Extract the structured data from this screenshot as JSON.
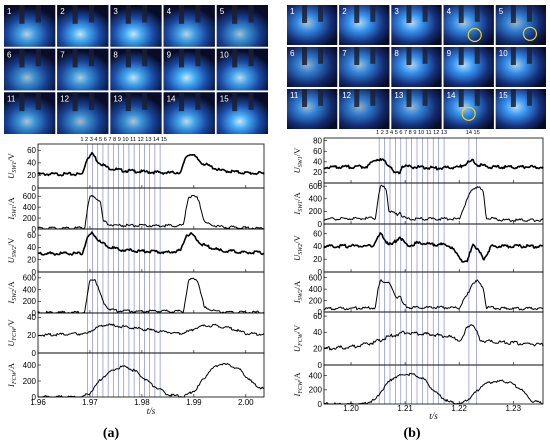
{
  "figure": {
    "panel_labels": [
      "(a)",
      "(b)"
    ],
    "frame_numbers": [
      "1",
      "2",
      "3",
      "4",
      "5",
      "6",
      "7",
      "8",
      "9",
      "10",
      "11",
      "12",
      "13",
      "14",
      "15"
    ]
  },
  "colors": {
    "trace": "#000000",
    "marker_line": "#6f78c8",
    "frame_bg": "#0b1030",
    "frame_glow": "#3aa0ff",
    "highlight_circle": "#f2d21b"
  },
  "chart_data": [
    {
      "id": "a",
      "type": "line",
      "xlabel": "t/s",
      "xlim": [
        1.96,
        2.0035
      ],
      "xticks": [
        1.96,
        1.97,
        1.98,
        1.99,
        2.0
      ],
      "xtick_labels": [
        "1.96",
        "1.97",
        "1.98",
        "1.99",
        "2.00"
      ],
      "marker_labels": [
        "1",
        "2",
        "3",
        "4",
        "5",
        "6",
        "7",
        "8",
        "9",
        "10",
        "11",
        "12",
        "13",
        "14",
        "15"
      ],
      "marker_label_text": [
        "1 2 3 4 5 6 7 8 9 10 11 12 13 14 15"
      ],
      "marker_times": [
        1.9695,
        1.9705,
        1.9715,
        1.9725,
        1.9735,
        1.9745,
        1.9755,
        1.9765,
        1.9775,
        1.9785,
        1.9795,
        1.9805,
        1.9815,
        1.9825,
        1.9835
      ],
      "subplots": [
        {
          "ylabel": "U_SW1/V",
          "ylabel_main": "U",
          "ylabel_sub": "SW1",
          "ylabel_unit": "/V",
          "ylim": [
            0,
            70
          ],
          "yticks": [
            0,
            20,
            40,
            60
          ],
          "series": [
            {
              "x": [
                1.96,
                1.9685,
                1.9695,
                1.9705,
                1.9715,
                1.9735,
                1.976,
                1.98,
                1.985,
                1.9875,
                1.9885,
                1.9895,
                1.9915,
                1.995,
                2.0,
                2.0035
              ],
              "y": [
                22,
                22,
                48,
                55,
                42,
                32,
                28,
                26,
                24,
                25,
                50,
                55,
                40,
                28,
                24,
                23
              ]
            }
          ]
        },
        {
          "ylabel": "I_SW1/A",
          "ylabel_main": "I",
          "ylabel_sub": "SW1",
          "ylabel_unit": "/A",
          "ylim": [
            0,
            750
          ],
          "yticks": [
            0,
            200,
            400,
            600
          ],
          "series": [
            {
              "x": [
                1.96,
                1.969,
                1.9695,
                1.97,
                1.971,
                1.972,
                1.9725,
                1.9735,
                1.975,
                1.98,
                1.985,
                1.988,
                1.9885,
                1.989,
                1.9905,
                1.991,
                1.992,
                1.995,
                2.0,
                2.0035
              ],
              "y": [
                10,
                20,
                380,
                600,
                580,
                520,
                150,
                90,
                70,
                60,
                60,
                60,
                380,
                600,
                580,
                520,
                120,
                40,
                20,
                15
              ]
            }
          ]
        },
        {
          "ylabel": "U_SW2/V",
          "ylabel_main": "U",
          "ylabel_sub": "SW2",
          "ylabel_unit": "/V",
          "ylim": [
            0,
            70
          ],
          "yticks": [
            0,
            20,
            40,
            60
          ],
          "series": [
            {
              "x": [
                1.96,
                1.9685,
                1.9695,
                1.9705,
                1.972,
                1.974,
                1.976,
                1.98,
                1.985,
                1.9875,
                1.9885,
                1.9895,
                1.9915,
                1.995,
                2.0,
                2.0035
              ],
              "y": [
                30,
                30,
                55,
                64,
                48,
                40,
                36,
                34,
                32,
                35,
                60,
                62,
                45,
                35,
                32,
                31
              ]
            }
          ]
        },
        {
          "ylabel": "I_SW2/A",
          "ylabel_main": "I",
          "ylabel_sub": "SW2",
          "ylabel_unit": "/A",
          "ylim": [
            0,
            700
          ],
          "yticks": [
            0,
            200,
            400,
            600
          ],
          "series": [
            {
              "x": [
                1.96,
                1.969,
                1.9695,
                1.97,
                1.971,
                1.9725,
                1.9735,
                1.975,
                1.98,
                1.985,
                1.988,
                1.9885,
                1.989,
                1.9905,
                1.991,
                1.992,
                1.995,
                2.0,
                2.0035
              ],
              "y": [
                5,
                10,
                300,
                560,
                580,
                200,
                80,
                40,
                30,
                30,
                30,
                300,
                560,
                580,
                480,
                90,
                20,
                10,
                10
              ]
            }
          ]
        },
        {
          "ylabel": "U_FCW/V",
          "ylabel_main": "U",
          "ylabel_sub": "FCW",
          "ylabel_unit": "/V",
          "ylim": [
            0,
            45
          ],
          "yticks": [
            0,
            20,
            40
          ],
          "series": [
            {
              "x": [
                1.96,
                1.965,
                1.9695,
                1.971,
                1.973,
                1.976,
                1.98,
                1.984,
                1.987,
                1.989,
                1.991,
                1.994,
                1.997,
                2.0,
                2.0035
              ],
              "y": [
                20,
                21,
                22,
                28,
                32,
                30,
                27,
                24,
                22,
                24,
                30,
                31,
                28,
                22,
                21
              ]
            }
          ]
        },
        {
          "ylabel": "I_FCW/A",
          "ylabel_main": "I",
          "ylabel_sub": "FCW",
          "ylabel_unit": "/A",
          "ylim": [
            0,
            550
          ],
          "yticks": [
            0,
            200,
            400
          ],
          "series": [
            {
              "x": [
                1.96,
                1.9685,
                1.97,
                1.9725,
                1.975,
                1.977,
                1.979,
                1.982,
                1.985,
                1.988,
                1.9905,
                1.993,
                1.995,
                1.997,
                1.999,
                2.0015,
                2.0035
              ],
              "y": [
                0,
                0,
                50,
                250,
                360,
                380,
                310,
                150,
                30,
                0,
                100,
                330,
                410,
                400,
                330,
                160,
                100
              ]
            }
          ]
        }
      ]
    },
    {
      "id": "b",
      "type": "line",
      "xlabel": "t/s",
      "xlim": [
        1.195,
        1.2355
      ],
      "xticks": [
        1.2,
        1.21,
        1.22,
        1.23
      ],
      "xtick_labels": [
        "1.20",
        "1.21",
        "1.22",
        "1.23"
      ],
      "marker_labels": [
        "1",
        "2",
        "3",
        "4",
        "5",
        "6",
        "7",
        "8",
        "9",
        "10",
        "11",
        "12",
        "13",
        "14",
        "15"
      ],
      "marker_label_text": [
        "1 2 3 4 5 6 7 8 9 10 11 12 13",
        "14 15"
      ],
      "marker_times": [
        1.2052,
        1.2062,
        1.2072,
        1.2082,
        1.2092,
        1.2102,
        1.2112,
        1.2122,
        1.2132,
        1.2142,
        1.2152,
        1.2162,
        1.2172,
        1.2218,
        1.2232
      ],
      "subplots": [
        {
          "ylabel": "U_SW1/V",
          "ylabel_main": "U",
          "ylabel_sub": "SW1",
          "ylabel_unit": "/V",
          "ylim": [
            0,
            85
          ],
          "yticks": [
            0,
            20,
            40,
            60,
            80
          ],
          "series": [
            {
              "x": [
                1.195,
                1.203,
                1.2045,
                1.206,
                1.2075,
                1.208,
                1.209,
                1.2095,
                1.212,
                1.216,
                1.22,
                1.2215,
                1.2225,
                1.2235,
                1.226,
                1.23,
                1.2355
              ],
              "y": [
                30,
                31,
                45,
                42,
                30,
                18,
                20,
                32,
                30,
                28,
                30,
                38,
                42,
                34,
                30,
                30,
                30
              ]
            }
          ]
        },
        {
          "ylabel": "I_SW1/A",
          "ylabel_main": "I",
          "ylabel_sub": "SW1",
          "ylabel_unit": "/A",
          "ylim": [
            0,
            650
          ],
          "yticks": [
            0,
            200,
            400,
            600
          ],
          "series": [
            {
              "x": [
                1.195,
                1.2045,
                1.205,
                1.2055,
                1.2065,
                1.207,
                1.2085,
                1.209,
                1.2095,
                1.2105,
                1.215,
                1.22,
                1.2215,
                1.2225,
                1.2235,
                1.2245,
                1.225,
                1.228,
                1.2355
              ],
              "y": [
                80,
                90,
                400,
                600,
                570,
                200,
                150,
                200,
                120,
                80,
                80,
                80,
                400,
                560,
                600,
                500,
                100,
                60,
                60
              ]
            }
          ]
        },
        {
          "ylabel": "U_SW2/V",
          "ylabel_main": "U",
          "ylabel_sub": "SW2",
          "ylabel_unit": "/V",
          "ylim": [
            0,
            75
          ],
          "yticks": [
            0,
            20,
            40,
            60
          ],
          "series": [
            {
              "x": [
                1.195,
                1.204,
                1.2055,
                1.2065,
                1.2075,
                1.209,
                1.2105,
                1.212,
                1.214,
                1.218,
                1.22,
                1.2205,
                1.2215,
                1.2225,
                1.2235,
                1.2245,
                1.226,
                1.23,
                1.2355
              ],
              "y": [
                40,
                41,
                60,
                48,
                42,
                55,
                40,
                45,
                44,
                42,
                25,
                18,
                15,
                45,
                35,
                20,
                40,
                40,
                40
              ]
            }
          ]
        },
        {
          "ylabel": "I_SW2/A",
          "ylabel_main": "I",
          "ylabel_sub": "SW2",
          "ylabel_unit": "/A",
          "ylim": [
            0,
            700
          ],
          "yticks": [
            0,
            200,
            400,
            600
          ],
          "series": [
            {
              "x": [
                1.195,
                1.2045,
                1.205,
                1.2055,
                1.207,
                1.2085,
                1.209,
                1.2095,
                1.2105,
                1.215,
                1.22,
                1.2215,
                1.2225,
                1.2235,
                1.2245,
                1.225,
                1.228,
                1.2355
              ],
              "y": [
                60,
                70,
                400,
                560,
                500,
                250,
                300,
                150,
                80,
                80,
                70,
                300,
                520,
                540,
                420,
                80,
                60,
                60
              ]
            }
          ]
        },
        {
          "ylabel": "U_FCW/V",
          "ylabel_main": "U",
          "ylabel_sub": "FCW",
          "ylabel_unit": "/V",
          "ylim": [
            0,
            65
          ],
          "yticks": [
            0,
            20,
            40,
            60
          ],
          "series": [
            {
              "x": [
                1.195,
                1.2,
                1.2045,
                1.207,
                1.21,
                1.214,
                1.218,
                1.2205,
                1.2215,
                1.2225,
                1.224,
                1.227,
                1.23,
                1.2355
              ],
              "y": [
                20,
                22,
                28,
                35,
                40,
                38,
                35,
                30,
                48,
                50,
                30,
                28,
                27,
                25
              ]
            }
          ]
        },
        {
          "ylabel": "I_FCW/A",
          "ylabel_main": "I",
          "ylabel_sub": "FCW",
          "ylabel_unit": "/A",
          "ylim": [
            0,
            550
          ],
          "yticks": [
            0,
            200,
            400
          ],
          "series": [
            {
              "x": [
                1.195,
                1.202,
                1.2045,
                1.2065,
                1.208,
                1.21,
                1.2115,
                1.2135,
                1.2155,
                1.218,
                1.2205,
                1.2225,
                1.2245,
                1.2265,
                1.228,
                1.2295,
                1.2315,
                1.2335,
                1.2355
              ],
              "y": [
                0,
                0,
                60,
                280,
                380,
                420,
                420,
                350,
                170,
                30,
                0,
                120,
                280,
                320,
                320,
                300,
                200,
                40,
                10
              ]
            }
          ]
        }
      ]
    }
  ]
}
